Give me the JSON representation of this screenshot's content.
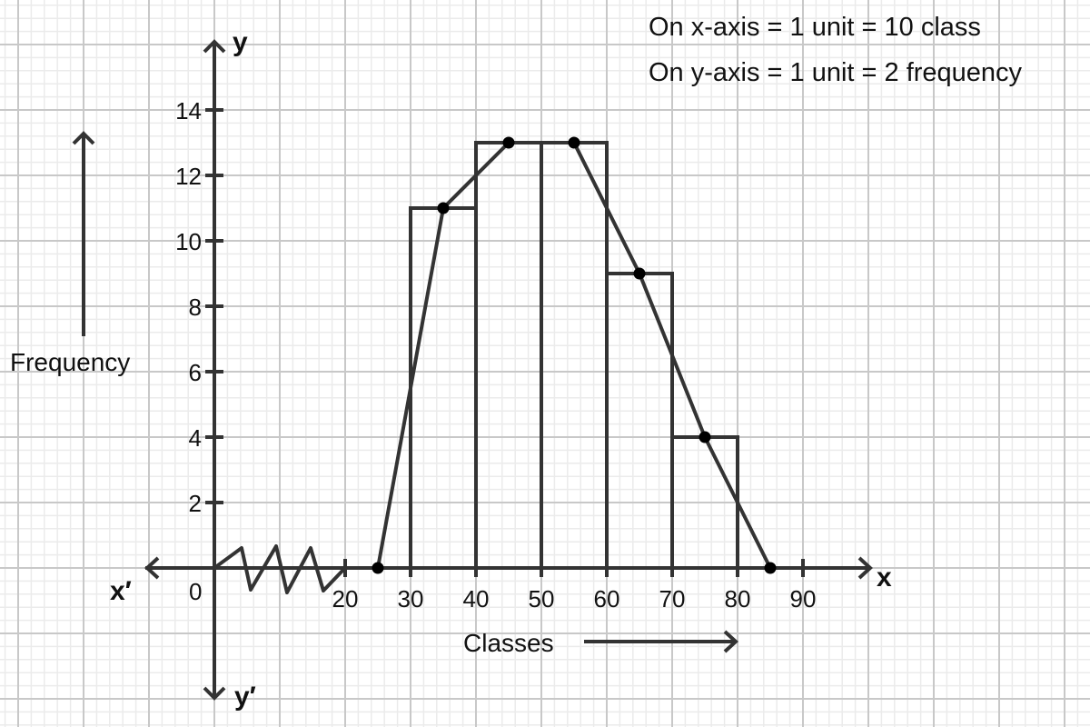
{
  "notes": {
    "x_scale": "On x-axis = 1 unit = 10 class",
    "y_scale": "On y-axis = 1 unit = 2 frequency"
  },
  "axes": {
    "x_label": "x",
    "x_neg_label": "x′",
    "y_label": "y",
    "y_neg_label": "y′",
    "origin_label": "0",
    "x_title": "Classes",
    "y_title": "Frequency"
  },
  "colors": {
    "ink": "#333333",
    "grid_major": "#c8c8c8",
    "grid_minor": "#ebebeb",
    "point": "#000000"
  },
  "chart_data": {
    "type": "bar",
    "subtype": "histogram_with_frequency_polygon",
    "title": "",
    "xlabel": "Classes",
    "ylabel": "Frequency",
    "categories": [
      "30-40",
      "40-50",
      "50-60",
      "60-70",
      "70-80"
    ],
    "values": [
      11,
      13,
      13,
      9,
      4
    ],
    "class_edges": [
      30,
      40,
      50,
      60,
      70,
      80
    ],
    "x_ticks": [
      20,
      30,
      40,
      50,
      60,
      70,
      80,
      90
    ],
    "y_ticks": [
      2,
      4,
      6,
      8,
      10,
      12,
      14
    ],
    "xlim": [
      0,
      100
    ],
    "ylim": [
      0,
      16
    ],
    "axis_break": "zigzag between 0 and 20 on x-axis",
    "grid": true,
    "legend": null,
    "series": [
      {
        "name": "Frequency polygon",
        "type": "line",
        "x": [
          25,
          35,
          45,
          55,
          65,
          75,
          85
        ],
        "y": [
          0,
          11,
          13,
          13,
          9,
          4,
          0
        ]
      }
    ]
  }
}
